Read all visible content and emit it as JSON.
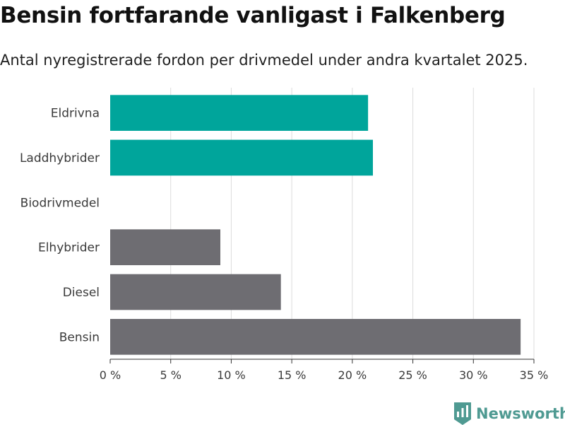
{
  "header": {
    "title": "Bensin fortfarande vanligast i Falkenberg",
    "subtitle": "Antal nyregistrerade fordon per drivmedel under andra kvartalet 2025."
  },
  "brand": {
    "name": "Newsworthy",
    "logo_icon": "bar-chart-logo-icon",
    "color": "#4f9a92"
  },
  "chart_data": {
    "type": "bar",
    "orientation": "horizontal",
    "title": "Bensin fortfarande vanligast i Falkenberg",
    "subtitle": "Antal nyregistrerade fordon per drivmedel under andra kvartalet 2025.",
    "xlabel": "",
    "ylabel": "",
    "categories": [
      "Eldrivna",
      "Laddhybrider",
      "Biodrivmedel",
      "Elhybrider",
      "Diesel",
      "Bensin"
    ],
    "values": [
      21.3,
      21.7,
      0,
      9.1,
      14.1,
      33.9
    ],
    "unit": "%",
    "xlim": [
      0,
      35
    ],
    "xticks": [
      0,
      5,
      10,
      15,
      20,
      25,
      30,
      35
    ],
    "xtick_labels": [
      "0 %",
      "5 %",
      "10 %",
      "15 %",
      "20 %",
      "25 %",
      "30 %",
      "35 %"
    ],
    "colors": [
      "#00a59b",
      "#00a59b",
      "#00a59b",
      "#6e6d72",
      "#6e6d72",
      "#6e6d72"
    ],
    "grid": true,
    "legend": "none"
  }
}
